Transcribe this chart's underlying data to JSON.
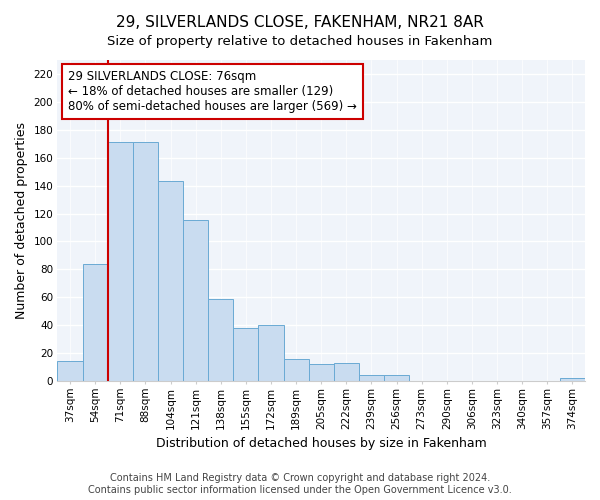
{
  "title": "29, SILVERLANDS CLOSE, FAKENHAM, NR21 8AR",
  "subtitle": "Size of property relative to detached houses in Fakenham",
  "xlabel": "Distribution of detached houses by size in Fakenham",
  "ylabel": "Number of detached properties",
  "bar_labels": [
    "37sqm",
    "54sqm",
    "71sqm",
    "88sqm",
    "104sqm",
    "121sqm",
    "138sqm",
    "155sqm",
    "172sqm",
    "189sqm",
    "205sqm",
    "222sqm",
    "239sqm",
    "256sqm",
    "273sqm",
    "290sqm",
    "306sqm",
    "323sqm",
    "340sqm",
    "357sqm",
    "374sqm"
  ],
  "bar_values": [
    14,
    84,
    171,
    171,
    143,
    115,
    59,
    38,
    40,
    16,
    12,
    13,
    4,
    4,
    0,
    0,
    0,
    0,
    0,
    0,
    2
  ],
  "bar_color": "#c9dcf0",
  "bar_edge_color": "#6aaad4",
  "vline_x_index": 2,
  "vline_color": "#cc0000",
  "annotation_line1": "29 SILVERLANDS CLOSE: 76sqm",
  "annotation_line2": "← 18% of detached houses are smaller (129)",
  "annotation_line3": "80% of semi-detached houses are larger (569) →",
  "annotation_box_color": "#ffffff",
  "annotation_box_edge": "#cc0000",
  "ylim": [
    0,
    230
  ],
  "yticks": [
    0,
    20,
    40,
    60,
    80,
    100,
    120,
    140,
    160,
    180,
    200,
    220
  ],
  "footer_text": "Contains HM Land Registry data © Crown copyright and database right 2024.\nContains public sector information licensed under the Open Government Licence v3.0.",
  "bg_color": "#ffffff",
  "plot_bg_color": "#f0f4fa",
  "title_fontsize": 11,
  "subtitle_fontsize": 9.5,
  "axis_label_fontsize": 9,
  "tick_fontsize": 7.5,
  "annotation_fontsize": 8.5,
  "footer_fontsize": 7
}
